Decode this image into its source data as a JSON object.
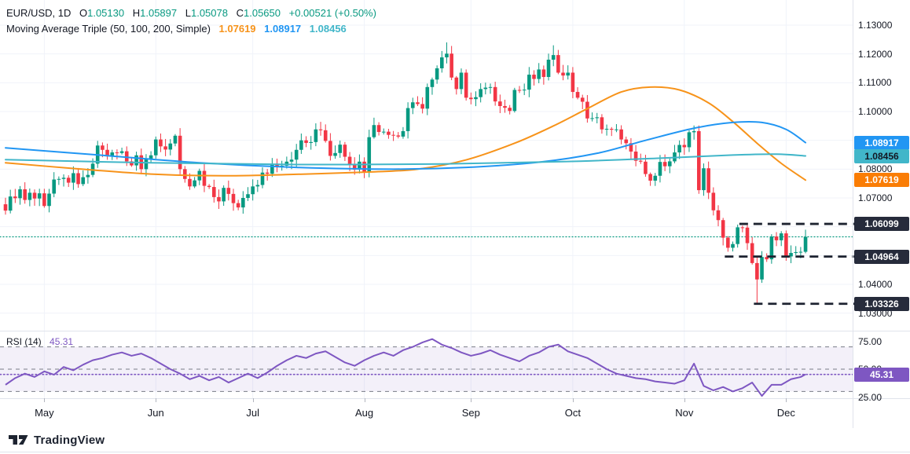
{
  "header": {
    "symbol_line": {
      "title": "EUR/USD, 1D",
      "open_label": "O",
      "open": "1.05130",
      "high_label": "H",
      "high": "1.05897",
      "low_label": "L",
      "low": "1.05078",
      "close_label": "C",
      "close": "1.05650",
      "change": "+0.00521 (+0.50%)"
    },
    "indicator_line": {
      "label": "Moving Average Triple (50, 100, 200, Simple)",
      "ma50_value": "1.07619",
      "ma100_value": "1.08917",
      "ma200_value": "1.08456"
    }
  },
  "rsi_legend": {
    "label": "RSI (14)",
    "value": "45.31"
  },
  "footer": {
    "brand": "TradingView"
  },
  "colors": {
    "up": "#089981",
    "down": "#f23645",
    "ma50": "#f7931a",
    "ma100": "#2196f3",
    "ma200": "#41b6c9",
    "rsi": "#7e57c2",
    "rsi_band_fill": "rgba(126,87,194,0.09)",
    "band_dash": "#787b86",
    "level_dash": "#1d2330",
    "close_line": "#089981",
    "text": "#131722",
    "grid": "#f0f3fa",
    "separator": "#e0e3eb",
    "badge_dark_bg": "#262b3b",
    "badge_orange_bg": "#fa7d05",
    "badge_blue_bg": "#2196f3",
    "badge_cyan_bg": "#41b6c9"
  },
  "price_axis": {
    "ticks": [
      {
        "label": "1.13000",
        "price": 1.13
      },
      {
        "label": "1.12000",
        "price": 1.12
      },
      {
        "label": "1.11000",
        "price": 1.11
      },
      {
        "label": "1.10000",
        "price": 1.1
      },
      {
        "label": "1.08000",
        "price": 1.08
      },
      {
        "label": "1.07000",
        "price": 1.07
      },
      {
        "label": "1.04000",
        "price": 1.04
      },
      {
        "label": "1.03000",
        "price": 1.03
      }
    ],
    "badges": [
      {
        "label": "1.08917",
        "price": 1.08917,
        "bg": "#2196f3",
        "fg": "#ffffff",
        "name": "price-badge-ma100"
      },
      {
        "label": "1.08456",
        "price": 1.08456,
        "bg": "#41b6c9",
        "fg": "#131722",
        "name": "price-badge-ma200"
      },
      {
        "label": "1.07619",
        "price": 1.07619,
        "bg": "#fa7d05",
        "fg": "#ffffff",
        "name": "price-badge-ma50"
      },
      {
        "label": "1.06099",
        "price": 1.06099,
        "bg": "#262b3b",
        "fg": "#ffffff",
        "name": "price-badge-level-upper"
      },
      {
        "label": "1.04964",
        "price": 1.04964,
        "bg": "#262b3b",
        "fg": "#ffffff",
        "name": "price-badge-level-middle"
      },
      {
        "label": "1.03326",
        "price": 1.03326,
        "bg": "#262b3b",
        "fg": "#ffffff",
        "name": "price-badge-level-lower"
      }
    ],
    "rsi_ticks": [
      {
        "label": "75.00",
        "value": 75
      },
      {
        "label": "50.00",
        "value": 50
      },
      {
        "label": "25.00",
        "value": 25
      }
    ],
    "rsi_badge": {
      "label": "45.31",
      "value": 45.31,
      "bg": "#7e57c2",
      "fg": "#ffffff",
      "name": "rsi-value-badge"
    }
  },
  "time_axis": {
    "months": [
      {
        "label": "May",
        "index": 8
      },
      {
        "label": "Jun",
        "index": 31
      },
      {
        "label": "Jul",
        "index": 51
      },
      {
        "label": "Aug",
        "index": 74
      },
      {
        "label": "Sep",
        "index": 96
      },
      {
        "label": "Oct",
        "index": 117
      },
      {
        "label": "Nov",
        "index": 140
      },
      {
        "label": "Dec",
        "index": 161
      }
    ]
  },
  "chart_data": {
    "type": "candlestick",
    "symbol": "EUR/USD",
    "interval": "1D",
    "title": "EUR/USD, 1D with Moving Average Triple (50, 100, 200, Simple) and RSI (14)",
    "y_axis": {
      "grid": {
        "min": 1.03,
        "max": 1.13,
        "step": 0.01
      },
      "visible_range": [
        1.0242,
        1.1387
      ]
    },
    "rsi_axis": {
      "range_labels": [
        75,
        50,
        25
      ],
      "bands": {
        "upper": 70,
        "middle": 50,
        "lower": 30
      }
    },
    "candles": {
      "first_open": 1.0678,
      "closes": [
        1.0656,
        1.0705,
        1.0699,
        1.073,
        1.0693,
        1.0718,
        1.0698,
        1.0716,
        1.0672,
        1.0715,
        1.0764,
        1.0766,
        1.077,
        1.0753,
        1.0786,
        1.0748,
        1.0772,
        1.078,
        1.0819,
        1.0882,
        1.0867,
        1.0844,
        1.0858,
        1.0856,
        1.0862,
        1.0827,
        1.0813,
        1.0848,
        1.08,
        1.0835,
        1.0848,
        1.0903,
        1.0879,
        1.0868,
        1.0889,
        1.0916,
        1.08,
        1.0766,
        1.074,
        1.0761,
        1.0794,
        1.0742,
        1.0738,
        1.0703,
        1.0688,
        1.0735,
        1.0714,
        1.0682,
        1.0667,
        1.07,
        1.0713,
        1.074,
        1.0745,
        1.0788,
        1.0784,
        1.0819,
        1.0808,
        1.0812,
        1.0826,
        1.0833,
        1.0867,
        1.09,
        1.0891,
        1.0894,
        1.0938,
        1.0935,
        1.0898,
        1.0846,
        1.0856,
        1.0885,
        1.0843,
        1.0816,
        1.0798,
        1.0826,
        1.0789,
        1.0911,
        1.0953,
        1.0929,
        1.093,
        1.0919,
        1.0917,
        1.0913,
        1.0932,
        1.1012,
        1.1032,
        1.1026,
        1.101,
        1.1085,
        1.1111,
        1.115,
        1.1188,
        1.1201,
        1.1118,
        1.1078,
        1.1135,
        1.1048,
        1.1043,
        1.105,
        1.1078,
        1.1083,
        1.1085,
        1.1035,
        1.1019,
        1.1013,
        1.1002,
        1.1075,
        1.1074,
        1.1076,
        1.1128,
        1.1113,
        1.1146,
        1.112,
        1.118,
        1.1196,
        1.1135,
        1.1125,
        1.1135,
        1.1068,
        1.1048,
        1.1034,
        1.0976,
        1.0977,
        1.098,
        1.0938,
        1.094,
        1.0937,
        1.0938,
        1.0903,
        1.089,
        1.0861,
        1.0829,
        1.0826,
        1.0783,
        1.076,
        1.0777,
        1.0825,
        1.081,
        1.0827,
        1.0858,
        1.0884,
        1.0876,
        1.0928,
        1.0932,
        1.0727,
        1.0803,
        1.0718,
        1.0657,
        1.0623,
        1.0562,
        1.0527,
        1.054,
        1.0598,
        1.0597,
        1.0543,
        1.0474,
        1.0417,
        1.0495,
        1.0487,
        1.0566,
        1.0553,
        1.0577,
        1.0497,
        1.0509,
        1.0512,
        1.0513,
        1.0565
      ],
      "wick_overrides": {
        "91": {
          "high": 1.124
        },
        "113": {
          "high": 1.123
        },
        "155": {
          "low": 1.0333
        }
      },
      "candle_overrides": {
        "165": {
          "open": 1.0513,
          "high": 1.05897,
          "low": 1.05078,
          "close": 1.0565
        }
      }
    },
    "moving_averages": [
      {
        "name": "SMA 50",
        "period": 50,
        "color": "#f7931a",
        "last_value": 1.07619,
        "points": [
          [
            0,
            1.0822
          ],
          [
            15,
            1.0801
          ],
          [
            30,
            1.0783
          ],
          [
            45,
            1.0777
          ],
          [
            60,
            1.0782
          ],
          [
            75,
            1.079
          ],
          [
            85,
            1.08
          ],
          [
            95,
            1.0832
          ],
          [
            105,
            1.089
          ],
          [
            113,
            1.095
          ],
          [
            120,
            1.101
          ],
          [
            127,
            1.1068
          ],
          [
            133,
            1.1085
          ],
          [
            139,
            1.1075
          ],
          [
            145,
            1.103
          ],
          [
            150,
            1.0965
          ],
          [
            155,
            1.089
          ],
          [
            160,
            1.082
          ],
          [
            165,
            1.0762
          ]
        ]
      },
      {
        "name": "SMA 100",
        "period": 100,
        "color": "#2196f3",
        "last_value": 1.08917,
        "points": [
          [
            0,
            1.0874
          ],
          [
            20,
            1.0848
          ],
          [
            40,
            1.0822
          ],
          [
            60,
            1.0806
          ],
          [
            80,
            1.08
          ],
          [
            95,
            1.0806
          ],
          [
            110,
            1.0824
          ],
          [
            122,
            1.0855
          ],
          [
            132,
            1.09
          ],
          [
            142,
            1.0942
          ],
          [
            150,
            1.0962
          ],
          [
            156,
            1.0962
          ],
          [
            161,
            1.0938
          ],
          [
            165,
            1.0892
          ]
        ]
      },
      {
        "name": "SMA 200",
        "period": 200,
        "color": "#41b6c9",
        "last_value": 1.08456,
        "points": [
          [
            0,
            1.0833
          ],
          [
            30,
            1.0822
          ],
          [
            60,
            1.0816
          ],
          [
            90,
            1.0818
          ],
          [
            115,
            1.0826
          ],
          [
            135,
            1.0838
          ],
          [
            150,
            1.0849
          ],
          [
            159,
            1.0852
          ],
          [
            165,
            1.0846
          ]
        ]
      }
    ],
    "rsi": {
      "period": 14,
      "current": 45.31,
      "index_step": 2,
      "values": [
        36,
        42,
        46,
        43,
        48,
        45,
        52,
        49,
        54,
        58,
        60,
        63,
        65,
        62,
        64,
        60,
        55,
        50,
        46,
        41,
        44,
        40,
        43,
        38,
        42,
        46,
        42,
        47,
        53,
        58,
        62,
        60,
        64,
        66,
        61,
        56,
        53,
        58,
        62,
        65,
        62,
        67,
        70,
        74,
        77,
        72,
        69,
        65,
        62,
        64,
        67,
        63,
        60,
        57,
        62,
        65,
        70,
        72,
        66,
        63,
        60,
        55,
        50,
        46,
        44,
        42,
        41,
        39,
        38,
        37,
        40,
        55,
        35,
        31,
        34,
        30,
        33,
        38,
        26,
        36,
        36,
        41,
        43,
        45.31
      ]
    },
    "levels": {
      "close_line": {
        "price": 1.0565
      },
      "dashed_levels": [
        {
          "price": 1.06099,
          "from_index": 152
        },
        {
          "price": 1.04964,
          "from_index": 149
        },
        {
          "price": 1.03326,
          "from_index": 155
        }
      ]
    }
  }
}
